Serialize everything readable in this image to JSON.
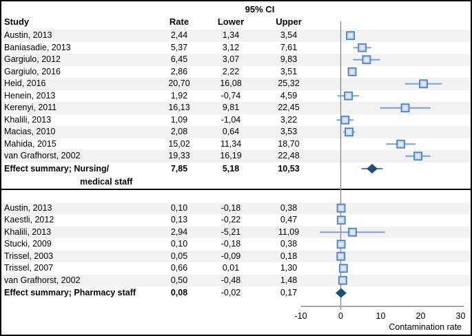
{
  "chart_data": {
    "type": "forest",
    "title": "95% CI",
    "columns": {
      "study": "Study",
      "rate": "Rate",
      "lower": "Lower limit",
      "upper": "Upper limit"
    },
    "xlabel": "Contamination rate",
    "xlim": [
      -10,
      30
    ],
    "xticks": [
      -10,
      0,
      10,
      20,
      30
    ],
    "grid": false,
    "number_format": "comma-decimal",
    "groups": [
      {
        "name": "Nursing/medical staff",
        "studies": [
          {
            "label": "Austin, 2013",
            "rate": 2.44,
            "lower": 1.34,
            "upper": 3.54
          },
          {
            "label": "Baniasadie, 2013",
            "rate": 5.37,
            "lower": 3.12,
            "upper": 7.61
          },
          {
            "label": "Gargiulo, 2012",
            "rate": 6.45,
            "lower": 3.07,
            "upper": 9.83
          },
          {
            "label": "Gargiulo, 2016",
            "rate": 2.86,
            "lower": 2.22,
            "upper": 3.51
          },
          {
            "label": "Heid, 2016",
            "rate": 20.7,
            "lower": 16.08,
            "upper": 25.32
          },
          {
            "label": "Henein, 2013",
            "rate": 1.92,
            "lower": -0.74,
            "upper": 4.59
          },
          {
            "label": "Kerenyi, 2011",
            "rate": 16.13,
            "lower": 9.81,
            "upper": 22.45
          },
          {
            "label": "Khalili, 2013",
            "rate": 1.09,
            "lower": -1.04,
            "upper": 3.22
          },
          {
            "label": "Macias, 2010",
            "rate": 2.08,
            "lower": 0.64,
            "upper": 3.53
          },
          {
            "label": "Mahida, 2015",
            "rate": 15.02,
            "lower": 11.34,
            "upper": 18.7
          },
          {
            "label": "van Grafhorst, 2002",
            "rate": 19.33,
            "lower": 16.19,
            "upper": 22.48
          }
        ],
        "summary": {
          "label_line1": "Effect summary; Nursing/",
          "label_line2": "medical staff",
          "rate": 7.85,
          "lower": 5.18,
          "upper": 10.53,
          "values_bold": "all"
        }
      },
      {
        "name": "Pharmacy staff",
        "studies": [
          {
            "label": "Austin, 2013",
            "rate": 0.1,
            "lower": -0.18,
            "upper": 0.38
          },
          {
            "label": "Kaestli, 2012",
            "rate": 0.13,
            "lower": -0.22,
            "upper": 0.47
          },
          {
            "label": "Khalili, 2013",
            "rate": 2.94,
            "lower": -5.21,
            "upper": 11.09
          },
          {
            "label": "Stucki, 2009",
            "rate": 0.1,
            "lower": -0.18,
            "upper": 0.38
          },
          {
            "label": "Trissel, 2003",
            "rate": 0.05,
            "lower": -0.09,
            "upper": 0.18
          },
          {
            "label": "Trissel, 2007",
            "rate": 0.66,
            "lower": 0.01,
            "upper": 1.3
          },
          {
            "label": "van Grafhorst, 2002",
            "rate": 0.5,
            "lower": -0.48,
            "upper": 1.48
          }
        ],
        "summary": {
          "label_line1": "Effect summary; Pharmacy staff",
          "label_line2": "",
          "rate": 0.08,
          "lower": -0.02,
          "upper": 0.17,
          "values_bold": "rate"
        }
      }
    ]
  },
  "colors": {
    "band": "#f2f2f2",
    "marker_fill": "#c9d8ed",
    "marker_inner": "#e0e9f5",
    "marker_border": "#4f81bd",
    "ci_line": "#7ba0cd",
    "summary_diamond": "#1f4e79",
    "zero_line": "#8c8c8c",
    "axis_line": "#a6a6a6",
    "divider": "#000000",
    "text": "#000000"
  }
}
